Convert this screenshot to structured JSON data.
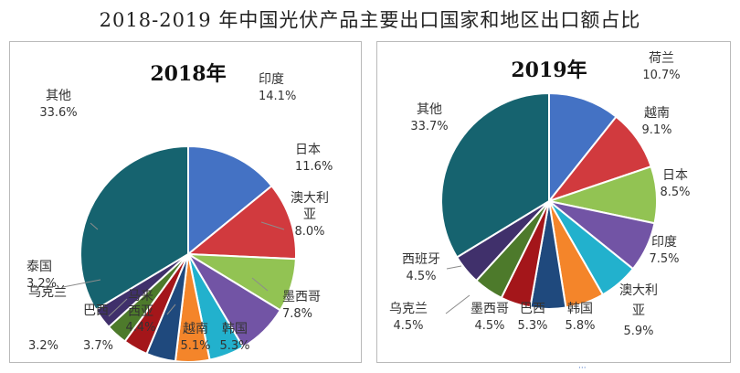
{
  "title": "2018-2019 年中国光伏产品主要出口国家和地区出口额占比",
  "footer": "···",
  "chart_data": [
    {
      "type": "pie",
      "title": "2018年",
      "slices": [
        {
          "label": "印度",
          "value": 14.1,
          "value_text": "14.1%",
          "color": "#4472c4"
        },
        {
          "label": "日本",
          "value": 11.6,
          "value_text": "11.6%",
          "color": "#d13a3e"
        },
        {
          "label": "澳大利亚",
          "value": 8.0,
          "value_text": "8.0%",
          "color": "#92c353"
        },
        {
          "label": "墨西哥",
          "value": 7.8,
          "value_text": "7.8%",
          "color": "#7254a5"
        },
        {
          "label": "韩国",
          "value": 5.3,
          "value_text": "5.3%",
          "color": "#22b1cd"
        },
        {
          "label": "越南",
          "value": 5.1,
          "value_text": "5.1%",
          "color": "#f4852a"
        },
        {
          "label": "马来西亚",
          "value": 4.4,
          "value_text": "4.4%",
          "color": "#1f497d"
        },
        {
          "label": "巴西",
          "value": 3.7,
          "value_text": "3.7%",
          "color": "#a4161a"
        },
        {
          "label": "乌克兰",
          "value": 3.2,
          "value_text": "3.2%",
          "color": "#4d7a2b"
        },
        {
          "label": "泰国",
          "value": 3.2,
          "value_text": "3.2%",
          "color": "#40306b"
        },
        {
          "label": "其他",
          "value": 33.6,
          "value_text": "33.6%",
          "color": "#16636f"
        }
      ]
    },
    {
      "type": "pie",
      "title": "2019年",
      "slices": [
        {
          "label": "荷兰",
          "value": 10.7,
          "value_text": "10.7%",
          "color": "#4472c4"
        },
        {
          "label": "越南",
          "value": 9.1,
          "value_text": "9.1%",
          "color": "#d13a3e"
        },
        {
          "label": "日本",
          "value": 8.5,
          "value_text": "8.5%",
          "color": "#92c353"
        },
        {
          "label": "印度",
          "value": 7.5,
          "value_text": "7.5%",
          "color": "#7254a5"
        },
        {
          "label": "澳大利亚",
          "value": 5.9,
          "value_text": "5.9%",
          "color": "#22b1cd"
        },
        {
          "label": "韩国",
          "value": 5.8,
          "value_text": "5.8%",
          "color": "#f4852a"
        },
        {
          "label": "巴西",
          "value": 5.3,
          "value_text": "5.3%",
          "color": "#1f497d"
        },
        {
          "label": "墨西哥",
          "value": 4.5,
          "value_text": "4.5%",
          "color": "#a4161a"
        },
        {
          "label": "乌克兰",
          "value": 4.5,
          "value_text": "4.5%",
          "color": "#4d7a2b"
        },
        {
          "label": "西班牙",
          "value": 4.5,
          "value_text": "4.5%",
          "color": "#40306b"
        },
        {
          "label": "其他",
          "value": 33.7,
          "value_text": "33.7%",
          "color": "#16636f"
        }
      ]
    }
  ]
}
